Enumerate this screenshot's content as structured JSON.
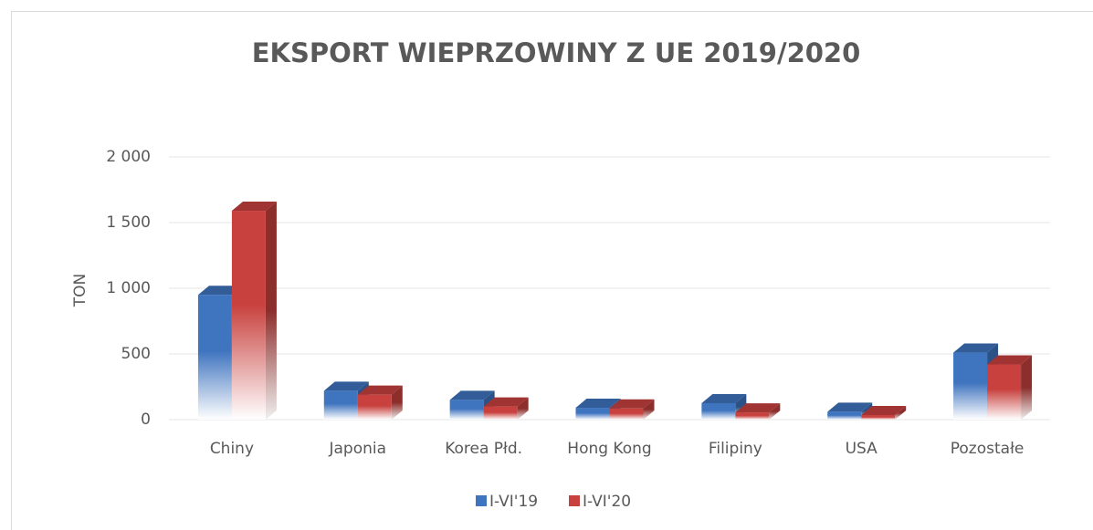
{
  "chart_data": {
    "type": "bar3d",
    "title": "EKSPORT WIEPRZOWINY Z UE 2019/2020",
    "y_label": "TON",
    "categories": [
      "Chiny",
      "Japonia",
      "Korea Płd.",
      "Hong Kong",
      "Filipiny",
      "USA",
      "Pozostałe"
    ],
    "series": [
      {
        "name": "I-VI'19",
        "color": "#3f74bf",
        "values": [
          950,
          220,
          150,
          90,
          125,
          60,
          510
        ]
      },
      {
        "name": "I-VI'20",
        "color": "#c8413e",
        "values": [
          1590,
          190,
          100,
          85,
          55,
          35,
          420
        ]
      }
    ],
    "ylim": [
      0,
      2000
    ],
    "yticks": [
      0,
      500,
      {
        "value": 1000,
        "label": "1 000"
      },
      {
        "value": 1500,
        "label": "1 500"
      },
      {
        "value": 2000,
        "label": "2 000"
      }
    ],
    "grid": true,
    "legend": "bottom"
  }
}
